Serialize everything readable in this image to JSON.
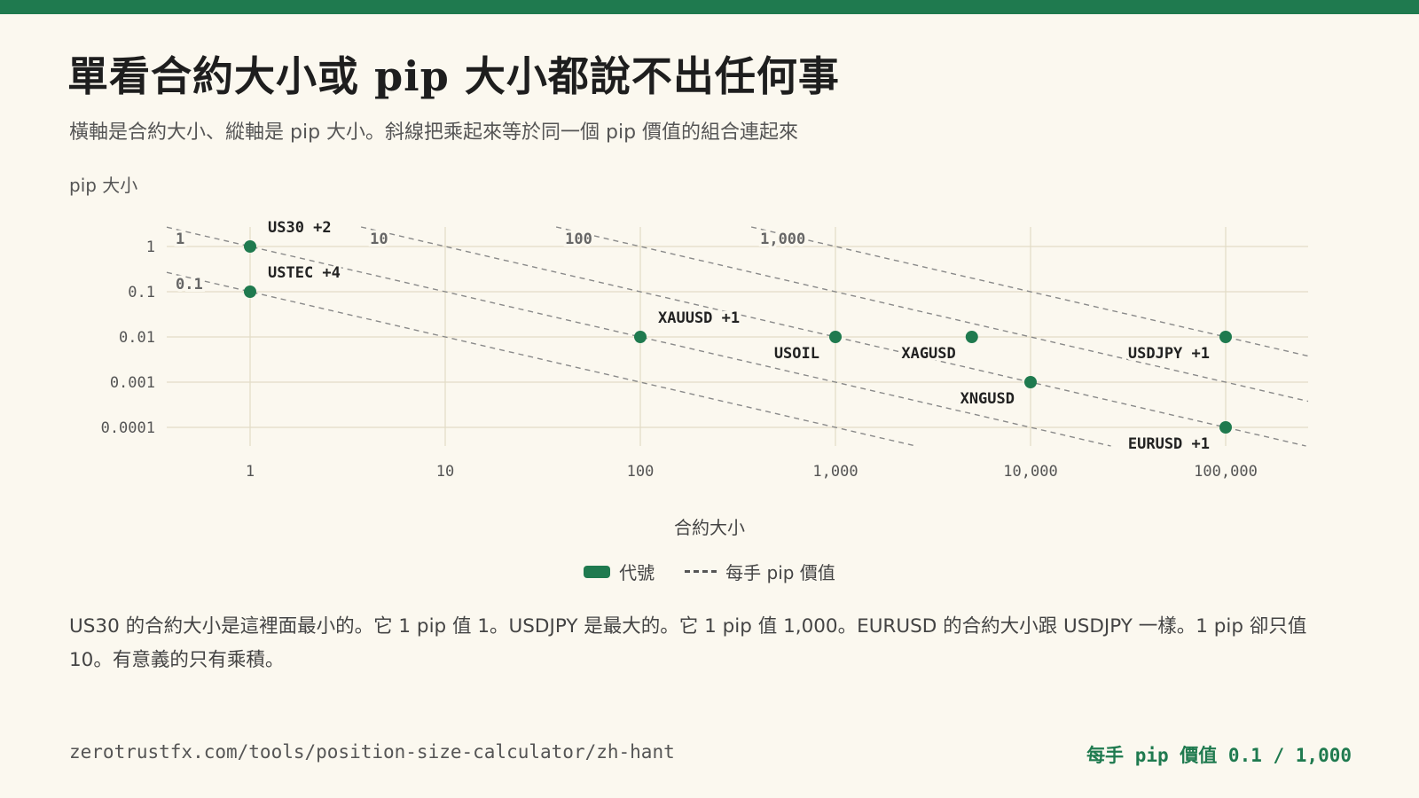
{
  "page": {
    "title": "單看合約大小或 pip 大小都說不出任何事",
    "subtitle": "橫軸是合約大小、縱軸是 pip 大小。斜線把乘起來等於同一個 pip 價值的組合連起來",
    "note": "US30 的合約大小是這裡面最小的。它 1 pip 值 1。USDJPY 是最大的。它 1 pip 值 1,000。EURUSD 的合約大小跟 USDJPY 一樣。1 pip 卻只值 10。有意義的只有乘積。",
    "source": "zerotrustfx.com/tools/position-size-calculator/zh-hant",
    "range_label": "每手 pip 價值 0.1 / 1,000"
  },
  "colors": {
    "accent": "#1f7a4f",
    "background": "#fbf8ef",
    "grid": "#e3dcc6",
    "dash": "#8a8a8a"
  },
  "chart_data": {
    "type": "scatter",
    "xscale": "log",
    "yscale": "log",
    "xlabel": "合約大小",
    "ylabel": "pip 大小",
    "x_ticks": [
      1,
      10,
      100,
      1000,
      10000,
      100000
    ],
    "x_tick_labels": [
      "1",
      "10",
      "100",
      "1,000",
      "10,000",
      "100,000"
    ],
    "y_ticks": [
      1,
      0.1,
      0.01,
      0.001,
      0.0001
    ],
    "y_tick_labels": [
      "1",
      "0.1",
      "0.01",
      "0.001",
      "0.0001"
    ],
    "legend": [
      "代號",
      "每手 pip 價值"
    ],
    "iso_lines": [
      {
        "value": 0.1,
        "label": "0.1"
      },
      {
        "value": 1,
        "label": "1"
      },
      {
        "value": 10,
        "label": "10"
      },
      {
        "value": 100,
        "label": "100"
      },
      {
        "value": 1000,
        "label": "1,000"
      }
    ],
    "points": [
      {
        "symbol": "US30",
        "extra": "+2",
        "x": 1,
        "y": 1
      },
      {
        "symbol": "USTEC",
        "extra": "+4",
        "x": 1,
        "y": 0.1
      },
      {
        "symbol": "XAUUSD",
        "extra": "+1",
        "x": 100,
        "y": 0.01
      },
      {
        "symbol": "USOIL",
        "extra": "",
        "x": 1000,
        "y": 0.01
      },
      {
        "symbol": "XAGUSD",
        "extra": "",
        "x": 5000,
        "y": 0.01
      },
      {
        "symbol": "XNGUSD",
        "extra": "",
        "x": 10000,
        "y": 0.001
      },
      {
        "symbol": "USDJPY",
        "extra": "+1",
        "x": 100000,
        "y": 0.01
      },
      {
        "symbol": "EURUSD",
        "extra": "+1",
        "x": 100000,
        "y": 0.0001
      }
    ]
  }
}
